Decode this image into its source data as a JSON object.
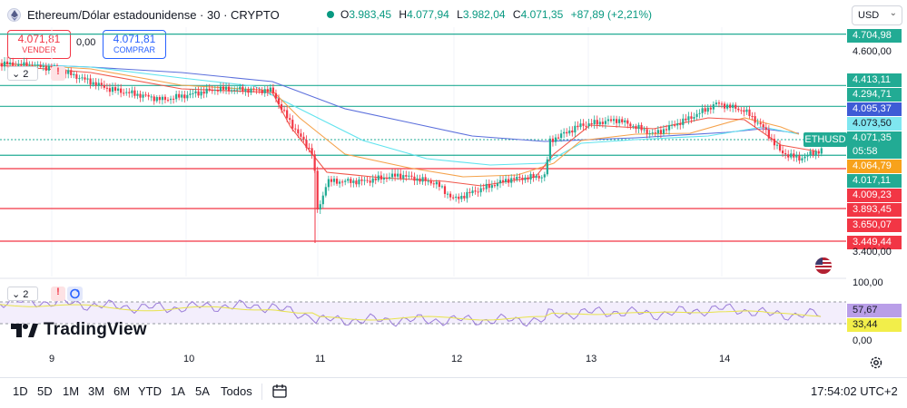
{
  "header": {
    "symbol_title": "Ethereum/Dólar estadounidense · 30 · CRYPTO",
    "ohlc": {
      "o_label": "O",
      "o_value": "3.983,45",
      "h_label": "H",
      "h_value": "4.077,94",
      "l_label": "L",
      "l_value": "3.982,04",
      "c_label": "C",
      "c_value": "4.071,35",
      "change": "+87,89 (+2,21%)"
    },
    "currency": "USD"
  },
  "trade": {
    "sell_price": "4.071,81",
    "sell_label": "VENDER",
    "spread": "0,00",
    "buy_price": "4.071,81",
    "buy_label": "COMPRAR"
  },
  "indicators": {
    "main_badge": "2",
    "rsi_badge": "2",
    "warning_glyph": "!"
  },
  "price_axis": {
    "labels": [
      {
        "text": "4.704,98",
        "kind": "tag",
        "color": "#22ab94"
      },
      {
        "text": "4.600,00",
        "kind": "tick"
      },
      {
        "text": "4.413,11",
        "kind": "tag",
        "color": "#22ab94"
      },
      {
        "text": "4.294,71",
        "kind": "tag",
        "color": "#22ab94"
      },
      {
        "text": "4.095,37",
        "kind": "tag",
        "color": "#3e5bd6"
      },
      {
        "text": "4.073,50",
        "kind": "tag",
        "color": "#7fe6f0",
        "dark_text": true
      },
      {
        "text": "4.071,35",
        "kind": "tag",
        "color": "#22ab94"
      },
      {
        "text": "05:58",
        "kind": "tag",
        "color": "#22ab94"
      },
      {
        "text": "4.064,79",
        "kind": "tag",
        "color": "#f7a21b"
      },
      {
        "text": "4.017,11",
        "kind": "tag",
        "color": "#22ab94"
      },
      {
        "text": "4.009,23",
        "kind": "tag",
        "color": "#f23645"
      },
      {
        "text": "3.893,45",
        "kind": "tag",
        "color": "#f23645"
      },
      {
        "text": "3.650,07",
        "kind": "tag",
        "color": "#f23645"
      },
      {
        "text": "3.449,44",
        "kind": "tag",
        "color": "#f23645"
      },
      {
        "text": "3.400,00",
        "kind": "tick"
      }
    ],
    "symbol_tag": "ETHUSD"
  },
  "rsi_axis": {
    "top": "100,00",
    "value_a": "57,67",
    "value_b": "33,44",
    "bottom": "0,00"
  },
  "logo": "TradingView",
  "time_axis": [
    "9",
    "10",
    "11",
    "12",
    "13",
    "14"
  ],
  "toolbar": {
    "ranges": [
      "1D",
      "5D",
      "1M",
      "3M",
      "6M",
      "YTD",
      "1A",
      "5A",
      "Todos"
    ],
    "clock": "17:54:02 UTC+2"
  },
  "colors": {
    "up": "#22ab94",
    "down": "#f23645",
    "ma_blue": "#5b6fdc",
    "ma_cyan": "#5fe3ee",
    "ma_orange": "#f5a24b",
    "ma_red": "#f0564a",
    "rsi": "#9a7cd8"
  }
}
